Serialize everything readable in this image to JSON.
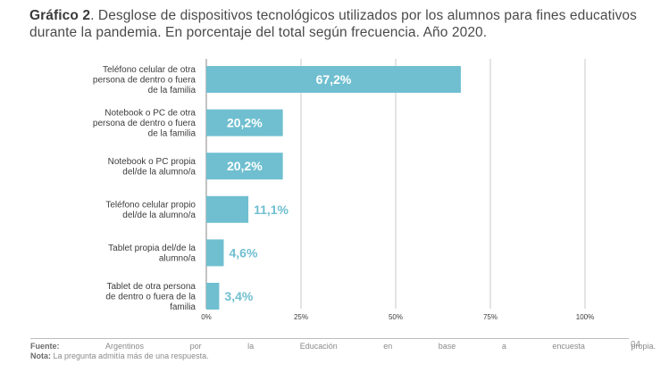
{
  "title": {
    "prefix": "Gráfico 2",
    "text": ". Desglose de dispositivos tecnológicos utilizados por los alumnos para fines educativos durante la pandemia. En porcentaje del total según frecuencia. Año 2020."
  },
  "chart_data": {
    "type": "bar",
    "orientation": "horizontal",
    "categories": [
      [
        "Teléfono celular de otra",
        "persona de dentro o fuera",
        "de la familia"
      ],
      [
        "Notebook o PC de otra",
        "persona de dentro o fuera",
        "de la familia"
      ],
      [
        "Notebook o PC propia",
        "del/de la alumno/a"
      ],
      [
        "Teléfono celular propio",
        "del/de la alumno/a"
      ],
      [
        "Tablet propia del/de la",
        "alumno/a"
      ],
      [
        "Tablet de otra persona",
        "de dentro o fuera de la",
        "familia"
      ]
    ],
    "values": [
      67.2,
      20.2,
      20.2,
      11.1,
      4.6,
      3.4
    ],
    "value_labels": [
      "67,2%",
      "20,2%",
      "20,2%",
      "11,1%",
      "4,6%",
      "3,4%"
    ],
    "xlim": [
      0,
      100
    ],
    "ticks": [
      0,
      25,
      50,
      75,
      100
    ],
    "tick_labels": [
      "0%",
      "25%",
      "50%",
      "75%",
      "100%"
    ],
    "bar_color": "#6fbfd0",
    "grid": true
  },
  "footer": {
    "source_label": "Fuente:",
    "source_words": [
      "Argentinos",
      "por",
      "la",
      "Educación",
      "en",
      "base",
      "a",
      "encuesta",
      "propia."
    ],
    "note_label": "Nota:",
    "note_text": "La pregunta admitía más de una respuesta.",
    "page_number": "04"
  }
}
